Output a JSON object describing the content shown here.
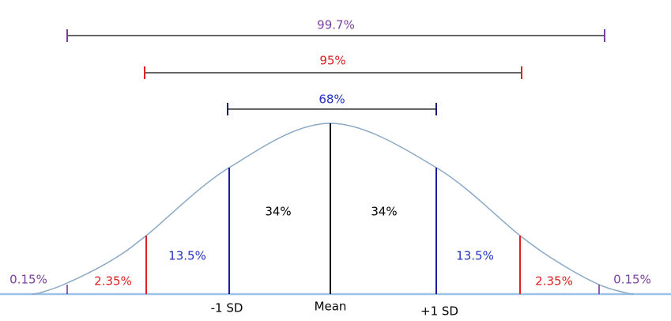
{
  "brackets": [
    {
      "label": "99.7%"
    },
    {
      "label": "95%"
    },
    {
      "label": "68%"
    }
  ],
  "regions": {
    "left_3": "0.15%",
    "left_2": "2.35%",
    "left_1": "13.5%",
    "left_0": "34%",
    "right_0": "34%",
    "right_1": "13.5%",
    "right_2": "2.35%",
    "right_3": "0.15%"
  },
  "axis_labels": {
    "minus_1": "-1 SD",
    "mean": "Mean",
    "plus_1": "+1 SD"
  }
}
